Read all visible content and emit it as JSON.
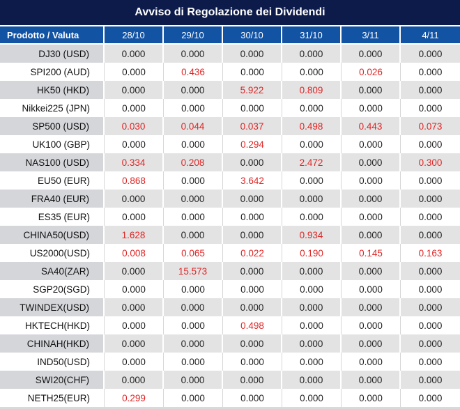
{
  "title": "Avviso di Regolazione dei Dividendi",
  "colors": {
    "title_bg": "#0d1b4b",
    "header_bg": "#1253a4",
    "row_label_gray": "#d4d6da",
    "row_data_gray": "#e3e3e3",
    "value_red": "#e02626",
    "value_black": "#1f1f1f"
  },
  "table": {
    "header": {
      "product_label": "Prodotto / Valuta",
      "dates": [
        "28/10",
        "29/10",
        "30/10",
        "31/10",
        "3/11",
        "4/11"
      ]
    },
    "rows": [
      {
        "product": "DJ30 (USD)",
        "values": [
          "0.000",
          "0.000",
          "0.000",
          "0.000",
          "0.000",
          "0.000"
        ],
        "red": [
          false,
          false,
          false,
          false,
          false,
          false
        ]
      },
      {
        "product": "SPI200 (AUD)",
        "values": [
          "0.000",
          "0.436",
          "0.000",
          "0.000",
          "0.026",
          "0.000"
        ],
        "red": [
          false,
          true,
          false,
          false,
          true,
          false
        ]
      },
      {
        "product": "HK50 (HKD)",
        "values": [
          "0.000",
          "0.000",
          "5.922",
          "0.809",
          "0.000",
          "0.000"
        ],
        "red": [
          false,
          false,
          true,
          true,
          false,
          false
        ]
      },
      {
        "product": "Nikkei225 (JPN)",
        "values": [
          "0.000",
          "0.000",
          "0.000",
          "0.000",
          "0.000",
          "0.000"
        ],
        "red": [
          false,
          false,
          false,
          false,
          false,
          false
        ]
      },
      {
        "product": "SP500 (USD)",
        "values": [
          "0.030",
          "0.044",
          "0.037",
          "0.498",
          "0.443",
          "0.073"
        ],
        "red": [
          true,
          true,
          true,
          true,
          true,
          true
        ]
      },
      {
        "product": "UK100 (GBP)",
        "values": [
          "0.000",
          "0.000",
          "0.294",
          "0.000",
          "0.000",
          "0.000"
        ],
        "red": [
          false,
          false,
          true,
          false,
          false,
          false
        ]
      },
      {
        "product": "NAS100 (USD)",
        "values": [
          "0.334",
          "0.208",
          "0.000",
          "2.472",
          "0.000",
          "0.300"
        ],
        "red": [
          true,
          true,
          false,
          true,
          false,
          true
        ]
      },
      {
        "product": "EU50 (EUR)",
        "values": [
          "0.868",
          "0.000",
          "3.642",
          "0.000",
          "0.000",
          "0.000"
        ],
        "red": [
          true,
          false,
          true,
          false,
          false,
          false
        ]
      },
      {
        "product": "FRA40 (EUR)",
        "values": [
          "0.000",
          "0.000",
          "0.000",
          "0.000",
          "0.000",
          "0.000"
        ],
        "red": [
          false,
          false,
          false,
          false,
          false,
          false
        ]
      },
      {
        "product": "ES35 (EUR)",
        "values": [
          "0.000",
          "0.000",
          "0.000",
          "0.000",
          "0.000",
          "0.000"
        ],
        "red": [
          false,
          false,
          false,
          false,
          false,
          false
        ]
      },
      {
        "product": "CHINA50(USD)",
        "values": [
          "1.628",
          "0.000",
          "0.000",
          "0.934",
          "0.000",
          "0.000"
        ],
        "red": [
          true,
          false,
          false,
          true,
          false,
          false
        ]
      },
      {
        "product": "US2000(USD)",
        "values": [
          "0.008",
          "0.065",
          "0.022",
          "0.190",
          "0.145",
          "0.163"
        ],
        "red": [
          true,
          true,
          true,
          true,
          true,
          true
        ]
      },
      {
        "product": "SA40(ZAR)",
        "values": [
          "0.000",
          "15.573",
          "0.000",
          "0.000",
          "0.000",
          "0.000"
        ],
        "red": [
          false,
          true,
          false,
          false,
          false,
          false
        ]
      },
      {
        "product": "SGP20(SGD)",
        "values": [
          "0.000",
          "0.000",
          "0.000",
          "0.000",
          "0.000",
          "0.000"
        ],
        "red": [
          false,
          false,
          false,
          false,
          false,
          false
        ]
      },
      {
        "product": "TWINDEX(USD)",
        "values": [
          "0.000",
          "0.000",
          "0.000",
          "0.000",
          "0.000",
          "0.000"
        ],
        "red": [
          false,
          false,
          false,
          false,
          false,
          false
        ]
      },
      {
        "product": "HKTECH(HKD)",
        "values": [
          "0.000",
          "0.000",
          "0.498",
          "0.000",
          "0.000",
          "0.000"
        ],
        "red": [
          false,
          false,
          true,
          false,
          false,
          false
        ]
      },
      {
        "product": "CHINAH(HKD)",
        "values": [
          "0.000",
          "0.000",
          "0.000",
          "0.000",
          "0.000",
          "0.000"
        ],
        "red": [
          false,
          false,
          false,
          false,
          false,
          false
        ]
      },
      {
        "product": "IND50(USD)",
        "values": [
          "0.000",
          "0.000",
          "0.000",
          "0.000",
          "0.000",
          "0.000"
        ],
        "red": [
          false,
          false,
          false,
          false,
          false,
          false
        ]
      },
      {
        "product": "SWI20(CHF)",
        "values": [
          "0.000",
          "0.000",
          "0.000",
          "0.000",
          "0.000",
          "0.000"
        ],
        "red": [
          false,
          false,
          false,
          false,
          false,
          false
        ]
      },
      {
        "product": "NETH25(EUR)",
        "values": [
          "0.299",
          "0.000",
          "0.000",
          "0.000",
          "0.000",
          "0.000"
        ],
        "red": [
          true,
          false,
          false,
          false,
          false,
          false
        ]
      }
    ]
  }
}
